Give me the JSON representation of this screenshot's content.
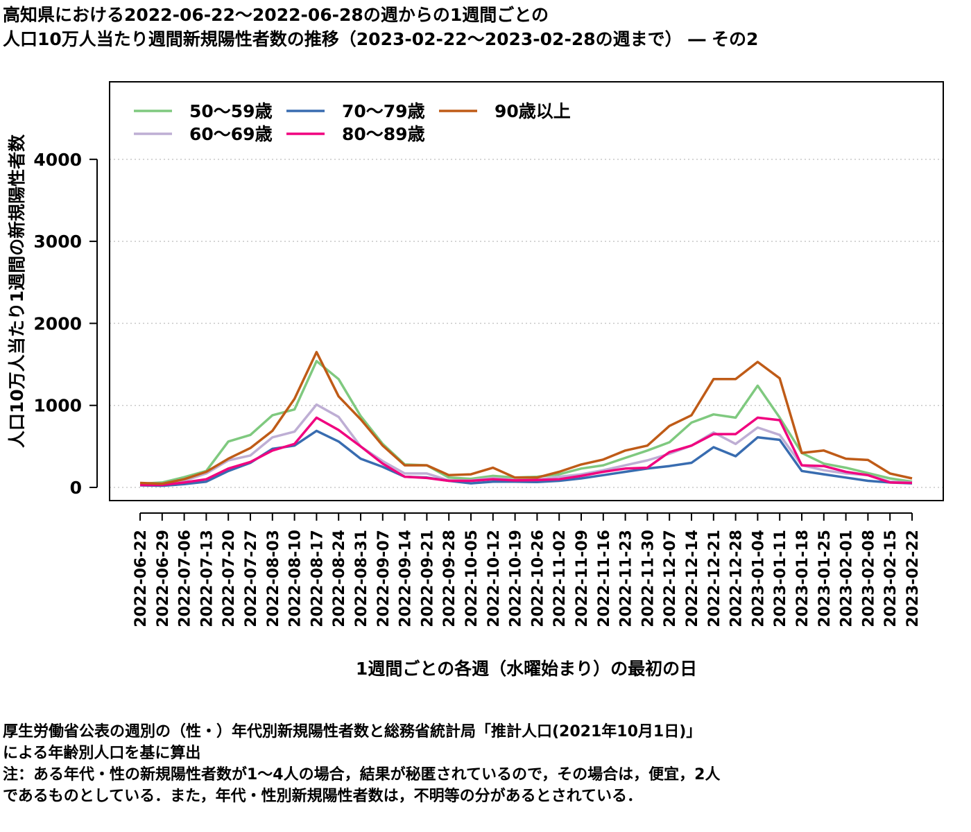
{
  "title": {
    "line1": "高知県における2022-06-22〜2022-06-28の週からの1週間ごとの",
    "line2": "人口10万人当たり週間新規陽性者数の推移（2023-02-22〜2023-02-28の週まで） ― その2"
  },
  "footnote": {
    "line1": "厚生労働省公表の週別の（性・）年代別新規陽性者数と総務省統計局「推計人口(2021年10月1日)」",
    "line2": "による年齢別人口を基に算出",
    "line3": "注：ある年代・性の新規陽性者数が1〜4人の場合，結果が秘匿されているので，その場合は，便宜，2人",
    "line4": "であるものとしている．また，年代・性別新規陽性者数は，不明等の分があるとされている．"
  },
  "chart_data": {
    "type": "line",
    "xlabel": "1週間ごとの各週（水曜始まり）の最初の日",
    "ylabel": "人口10万人当たり1週間の新規陽性者数",
    "ylim": [
      -100,
      4950
    ],
    "yticks": [
      0,
      1000,
      2000,
      3000,
      4000
    ],
    "grid": "horizontal dotted",
    "legend_position": "top-left",
    "categories": [
      "2022-06-22",
      "2022-06-29",
      "2022-07-06",
      "2022-07-13",
      "2022-07-20",
      "2022-07-27",
      "2022-08-03",
      "2022-08-10",
      "2022-08-17",
      "2022-08-24",
      "2022-08-31",
      "2022-09-07",
      "2022-09-14",
      "2022-09-21",
      "2022-09-28",
      "2022-10-05",
      "2022-10-12",
      "2022-10-19",
      "2022-10-26",
      "2022-11-02",
      "2022-11-09",
      "2022-11-16",
      "2022-11-23",
      "2022-11-30",
      "2022-12-07",
      "2022-12-14",
      "2022-12-21",
      "2022-12-28",
      "2023-01-04",
      "2023-01-11",
      "2023-01-18",
      "2023-01-25",
      "2023-02-01",
      "2023-02-08",
      "2023-02-15",
      "2023-02-22"
    ],
    "series": [
      {
        "name": "50〜59歳",
        "color": "#7fc97f",
        "values": [
          45,
          60,
          125,
          200,
          560,
          640,
          880,
          950,
          1540,
          1320,
          870,
          530,
          280,
          270,
          120,
          105,
          140,
          120,
          130,
          160,
          230,
          270,
          360,
          450,
          550,
          790,
          890,
          850,
          1240,
          850,
          420,
          290,
          240,
          175,
          110,
          70
        ]
      },
      {
        "name": "60〜69歳",
        "color": "#beaed4",
        "values": [
          30,
          40,
          80,
          170,
          330,
          390,
          610,
          680,
          1010,
          860,
          500,
          320,
          170,
          170,
          85,
          85,
          115,
          90,
          95,
          130,
          160,
          210,
          270,
          330,
          410,
          510,
          670,
          530,
          730,
          640,
          270,
          210,
          170,
          150,
          70,
          60
        ]
      },
      {
        "name": "70〜79歳",
        "color": "#386cb0",
        "values": [
          25,
          20,
          40,
          70,
          200,
          300,
          470,
          510,
          690,
          560,
          350,
          250,
          130,
          120,
          80,
          50,
          70,
          70,
          65,
          80,
          110,
          150,
          190,
          230,
          260,
          300,
          490,
          380,
          610,
          580,
          200,
          160,
          120,
          80,
          60,
          50
        ]
      },
      {
        "name": "80〜89歳",
        "color": "#f0027f",
        "values": [
          30,
          30,
          60,
          100,
          230,
          310,
          450,
          530,
          850,
          700,
          500,
          290,
          130,
          115,
          80,
          80,
          100,
          85,
          90,
          100,
          140,
          190,
          230,
          240,
          430,
          510,
          650,
          650,
          850,
          820,
          270,
          260,
          190,
          150,
          60,
          55
        ]
      },
      {
        "name": "90歳以上",
        "color": "#bf5b17",
        "values": [
          55,
          45,
          100,
          190,
          350,
          480,
          690,
          1080,
          1650,
          1110,
          830,
          510,
          270,
          270,
          150,
          160,
          240,
          120,
          120,
          190,
          280,
          340,
          450,
          510,
          750,
          880,
          1320,
          1320,
          1530,
          1330,
          420,
          450,
          350,
          335,
          170,
          110
        ]
      }
    ]
  }
}
